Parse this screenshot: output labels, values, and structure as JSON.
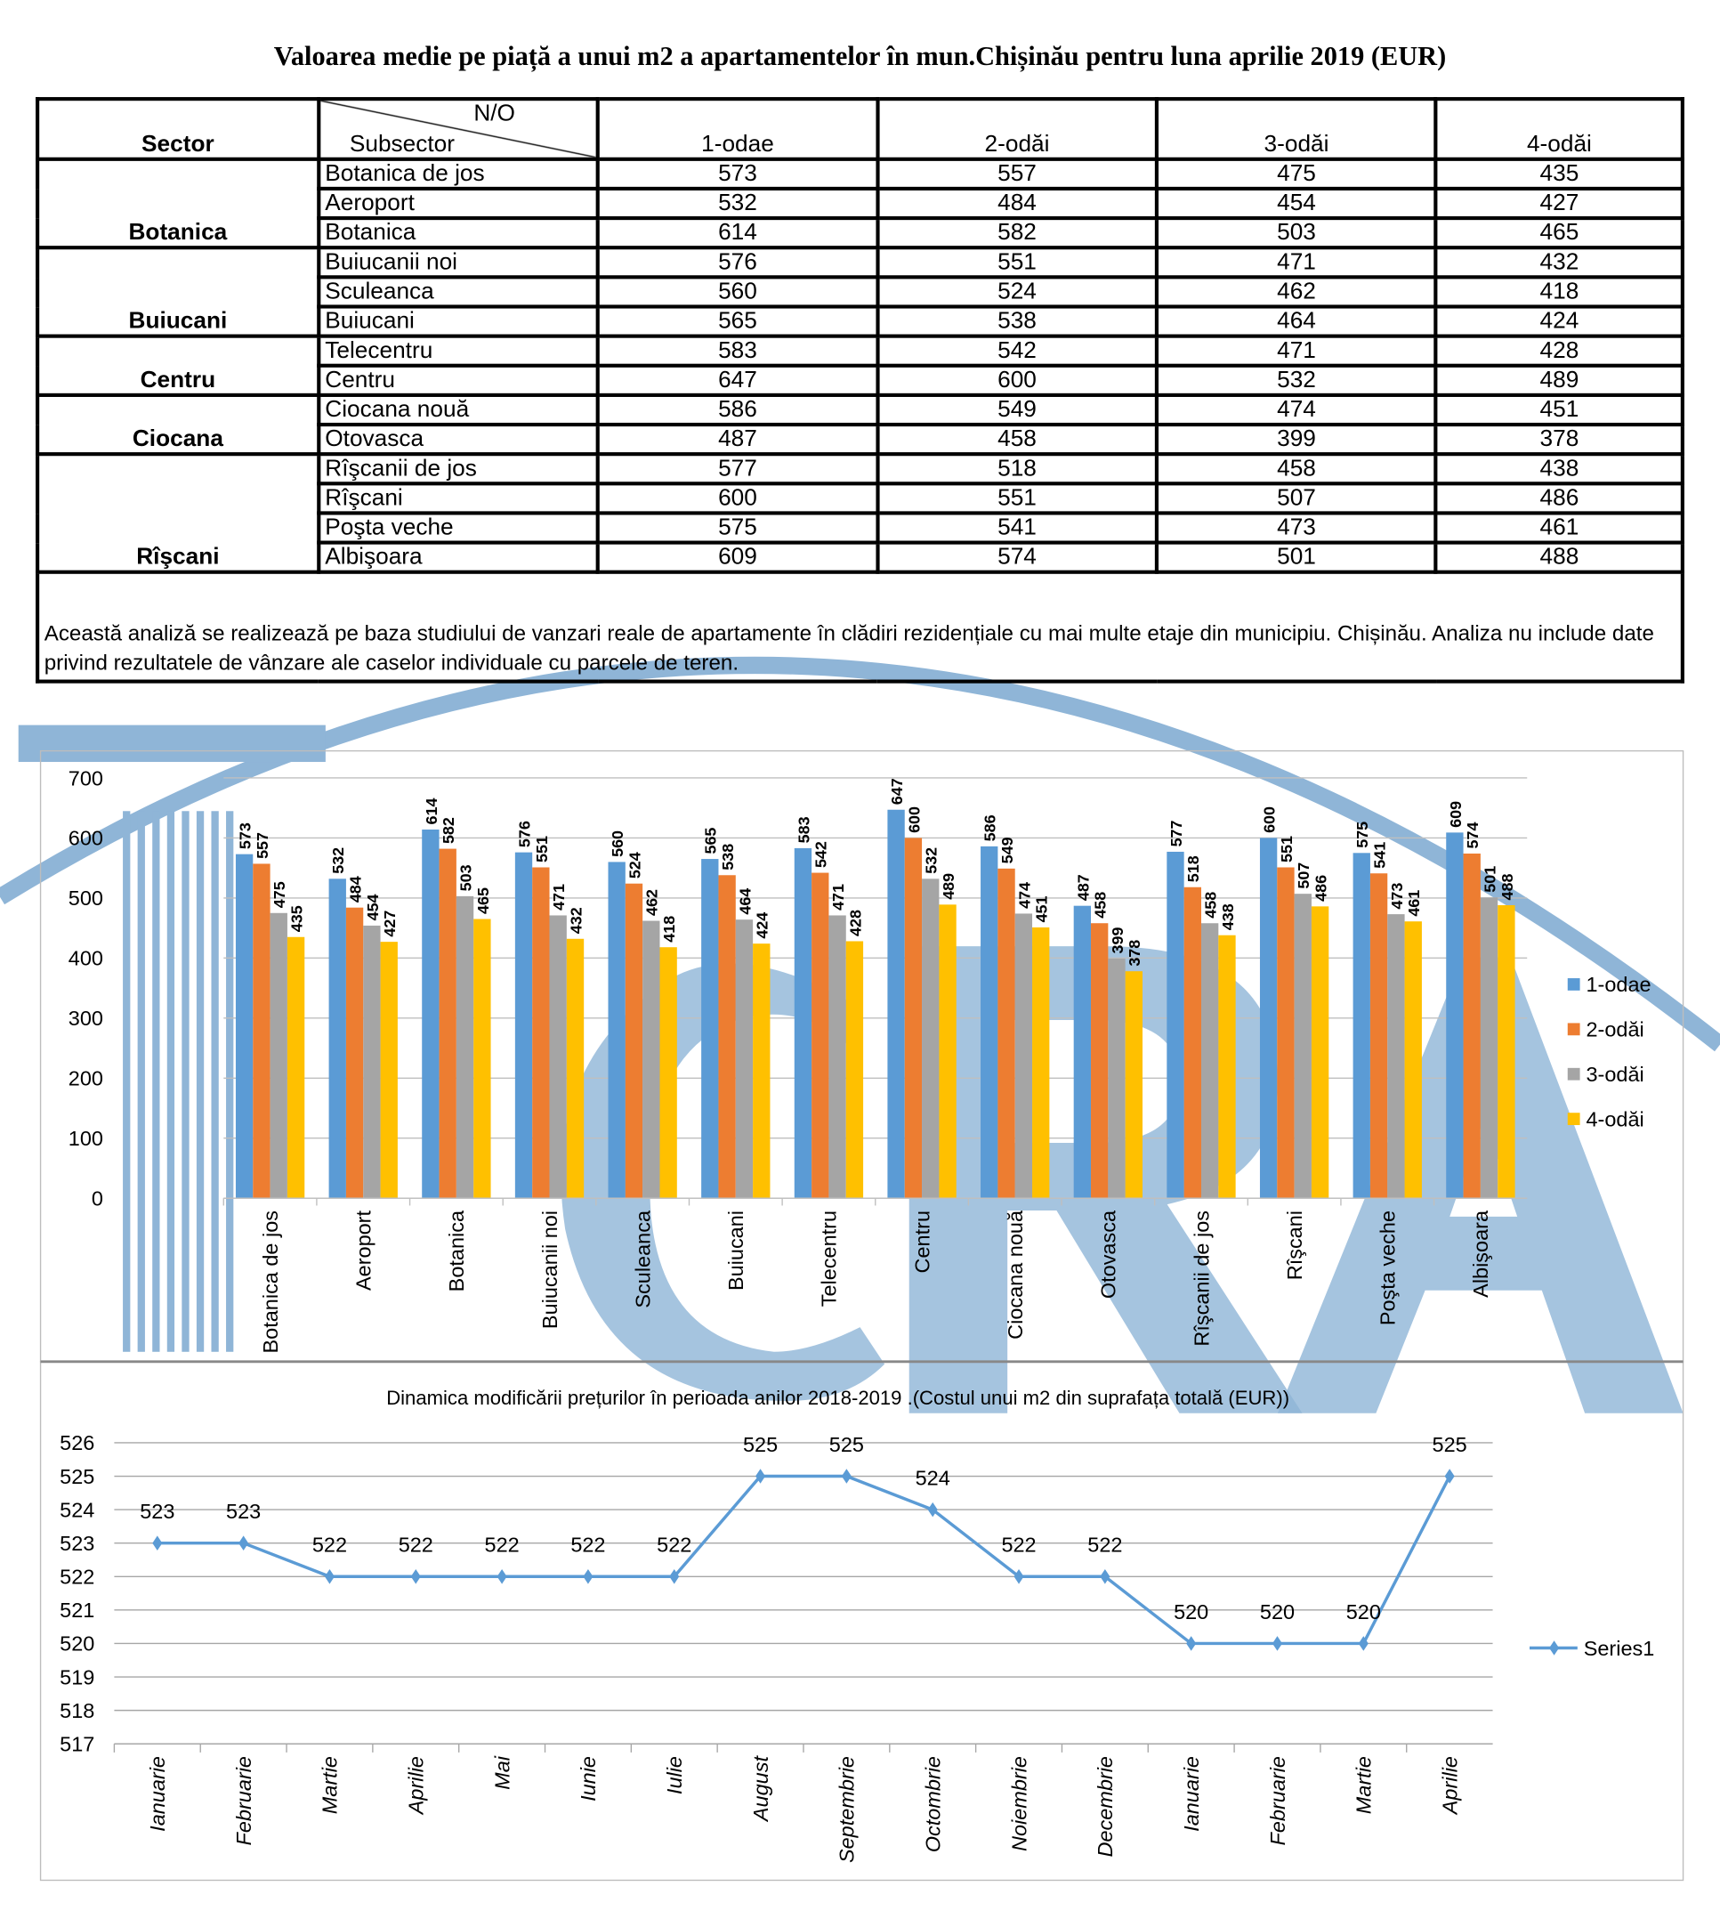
{
  "title": "Valoarea medie pe piață a unui m2 a apartamentelor în mun.Chișinău pentru luna aprilie 2019 (EUR)",
  "table": {
    "header": {
      "sector": "Sector",
      "no": "N/O",
      "subsector": "Subsector",
      "cols": [
        "1-odae",
        "2-odăi",
        "3-odăi",
        "4-odăi"
      ]
    },
    "groups": [
      {
        "sector": "Botanica",
        "rows": [
          [
            "Botanica de jos",
            573,
            557,
            475,
            435
          ],
          [
            "Aeroport",
            532,
            484,
            454,
            427
          ],
          [
            "Botanica",
            614,
            582,
            503,
            465
          ]
        ]
      },
      {
        "sector": "Buiucani",
        "rows": [
          [
            "Buiucanii noi",
            576,
            551,
            471,
            432
          ],
          [
            "Sculeanca",
            560,
            524,
            462,
            418
          ],
          [
            "Buiucani",
            565,
            538,
            464,
            424
          ]
        ]
      },
      {
        "sector": "Centru",
        "rows": [
          [
            "Telecentru",
            583,
            542,
            471,
            428
          ],
          [
            "Centru",
            647,
            600,
            532,
            489
          ]
        ]
      },
      {
        "sector": "Ciocana",
        "rows": [
          [
            "Ciocana nouă",
            586,
            549,
            474,
            451
          ],
          [
            "Otovasca",
            487,
            458,
            399,
            378
          ]
        ]
      },
      {
        "sector": "Rîşcani",
        "rows": [
          [
            "Rîşcanii de jos",
            577,
            518,
            458,
            438
          ],
          [
            "Rîşcani",
            600,
            551,
            507,
            486
          ],
          [
            "Poşta veche",
            575,
            541,
            473,
            461
          ],
          [
            "Albişoara",
            609,
            574,
            501,
            488
          ]
        ]
      }
    ],
    "note": "Această analiză se realizează pe baza studiului de vanzari reale de apartamente în clădiri rezidențiale cu mai multe etaje din municipiu. Chișinău. Analiza nu include date privind rezultatele de vânzare ale caselor individuale cu parcele de teren."
  },
  "watermark": "CARA",
  "chart_data": [
    {
      "type": "bar",
      "categories": [
        "Botanica de jos",
        "Aeroport",
        "Botanica",
        "Buiucanii noi",
        "Sculeanca",
        "Buiucani",
        "Telecentru",
        "Centru",
        "Ciocana nouă",
        "Otovasca",
        "Rîşcanii de jos",
        "Rîşcani",
        "Poşta veche",
        "Albişoara"
      ],
      "series": [
        {
          "name": "1-odae",
          "color": "#5b9bd5",
          "values": [
            573,
            532,
            614,
            576,
            560,
            565,
            583,
            647,
            586,
            487,
            577,
            600,
            575,
            609
          ]
        },
        {
          "name": "2-odăi",
          "color": "#ed7d31",
          "values": [
            557,
            484,
            582,
            551,
            524,
            538,
            542,
            600,
            549,
            458,
            518,
            551,
            541,
            574
          ]
        },
        {
          "name": "3-odăi",
          "color": "#a5a5a5",
          "values": [
            475,
            454,
            503,
            471,
            462,
            464,
            471,
            532,
            474,
            399,
            458,
            507,
            473,
            501
          ]
        },
        {
          "name": "4-odăi",
          "color": "#ffc000",
          "values": [
            435,
            427,
            465,
            432,
            418,
            424,
            428,
            489,
            451,
            378,
            438,
            486,
            461,
            488
          ]
        }
      ],
      "ylim": [
        0,
        700
      ],
      "yticks": [
        0,
        100,
        200,
        300,
        400,
        500,
        600,
        700
      ],
      "grid": true,
      "legend": "right"
    },
    {
      "type": "line",
      "title": "Dinamica modificării prețurilor în perioada anilor 2018-2019 .(Costul unui m2 din suprafața totală (EUR))",
      "categories": [
        "Ianuarie",
        "Februarie",
        "Martie",
        "Aprilie",
        "Mai",
        "Iunie",
        "Iulie",
        "August",
        "Septembrie",
        "Octombrie",
        "Noiembrie",
        "Decembrie",
        "Ianuarie",
        "Februarie",
        "Martie",
        "Aprilie"
      ],
      "series": [
        {
          "name": "Series1",
          "color": "#5b9bd5",
          "values": [
            523,
            523,
            522,
            522,
            522,
            522,
            522,
            525,
            525,
            524,
            522,
            522,
            520,
            520,
            520,
            525
          ]
        }
      ],
      "ylim": [
        517,
        526
      ],
      "yticks": [
        517,
        518,
        519,
        520,
        521,
        522,
        523,
        524,
        525,
        526
      ],
      "grid": true,
      "legend": "right"
    }
  ]
}
